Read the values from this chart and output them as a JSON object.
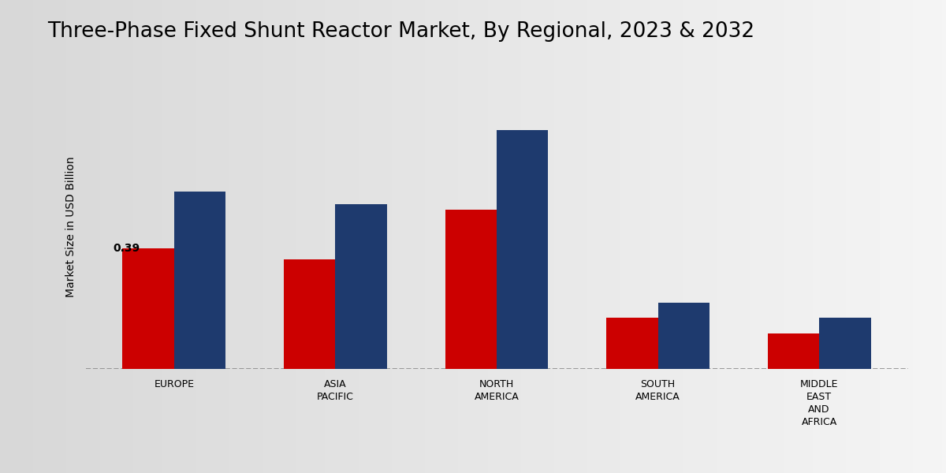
{
  "title": "Three-Phase Fixed Shunt Reactor Market, By Regional, 2023 & 2032",
  "ylabel": "Market Size in USD Billion",
  "categories": [
    "EUROPE",
    "ASIA\nPACIFIC",
    "NORTH\nAMERICA",
    "SOUTH\nAMERICA",
    "MIDDLE\nEAST\nAND\nAFRICA"
  ],
  "values_2023": [
    0.39,
    0.355,
    0.515,
    0.165,
    0.115
  ],
  "values_2032": [
    0.575,
    0.535,
    0.775,
    0.215,
    0.165
  ],
  "color_2023": "#CC0000",
  "color_2032": "#1E3A6E",
  "annotation_value": "0.39",
  "bar_width": 0.32,
  "ylim": [
    0,
    0.92
  ],
  "bg_left_color": "#D8D8D8",
  "bg_right_color": "#F5F5F5",
  "title_fontsize": 19,
  "label_fontsize": 10,
  "tick_fontsize": 9,
  "legend_fontsize": 12,
  "bottom_bar_color": "#B30000",
  "bottom_bar_height": 0.038
}
